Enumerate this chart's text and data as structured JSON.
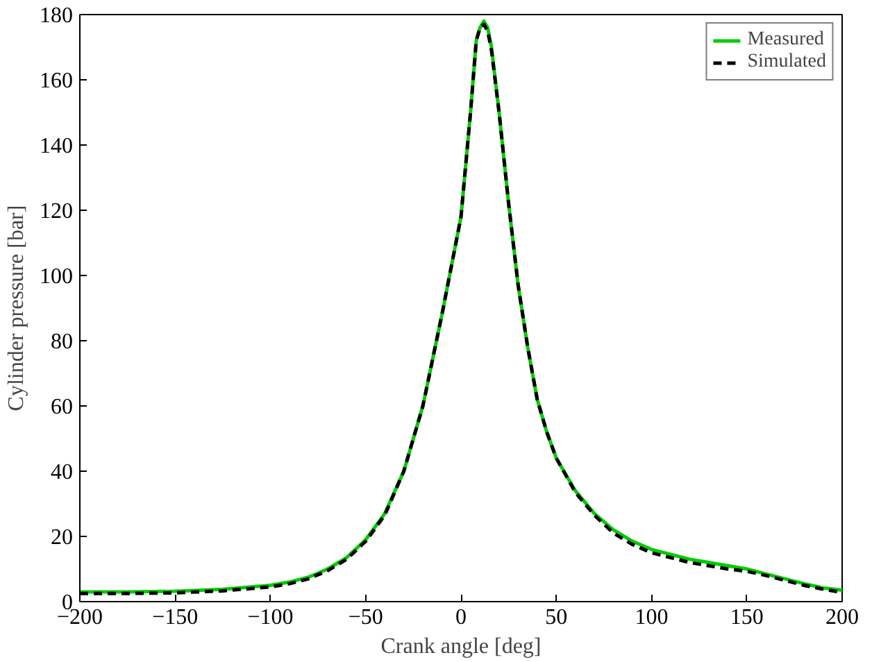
{
  "chart_data": {
    "type": "line",
    "xlabel": "Crank angle [deg]",
    "ylabel": "Cylinder pressure [bar]",
    "x": [
      -200,
      -175,
      -150,
      -125,
      -100,
      -90,
      -80,
      -70,
      -60,
      -50,
      -40,
      -30,
      -20,
      -10,
      -5,
      0,
      5,
      8,
      10,
      12,
      14,
      16,
      20,
      25,
      30,
      35,
      40,
      45,
      50,
      60,
      70,
      80,
      90,
      100,
      120,
      140,
      150,
      160,
      170,
      180,
      190,
      200
    ],
    "series": [
      {
        "name": "Measured",
        "color": "#00cc00",
        "line_style": "solid",
        "values": [
          3.0,
          3.0,
          3.2,
          3.8,
          5.0,
          6,
          7.5,
          10,
          13.5,
          19,
          27,
          40,
          60,
          88,
          103,
          118,
          150,
          172,
          176,
          178,
          176,
          170,
          150,
          122,
          97,
          78,
          62,
          52,
          44,
          34,
          27,
          22,
          18.5,
          16,
          13,
          11,
          10,
          8.5,
          7,
          5.5,
          4.2,
          3.5
        ]
      },
      {
        "name": "Simulated",
        "color": "#000000",
        "line_style": "dashed",
        "values": [
          2.5,
          2.5,
          2.7,
          3.3,
          4.5,
          5.5,
          7,
          9.5,
          13,
          18.5,
          26.5,
          40,
          60,
          88,
          103,
          118,
          150,
          172,
          176,
          177,
          175,
          169,
          150,
          122,
          97,
          78,
          62,
          52,
          44,
          33.5,
          26.5,
          21,
          17.5,
          15,
          12,
          10,
          9.3,
          8,
          6.5,
          5,
          3.8,
          2.8
        ]
      }
    ],
    "xlim": [
      -200,
      200
    ],
    "xticks": [
      -200,
      -150,
      -100,
      -50,
      0,
      50,
      100,
      150,
      200
    ],
    "ylim": [
      0,
      180
    ],
    "yticks": [
      0,
      20,
      40,
      60,
      80,
      100,
      120,
      140,
      160,
      180
    ],
    "grid": false,
    "legend": "top right"
  }
}
